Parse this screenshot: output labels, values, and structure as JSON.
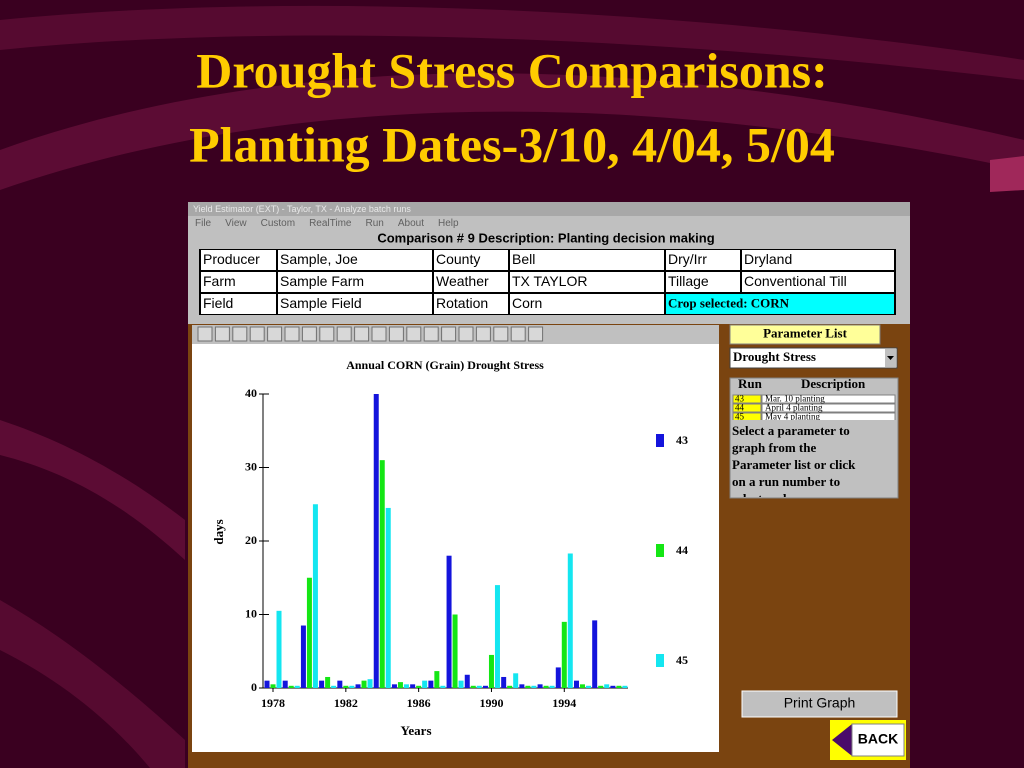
{
  "slide_title": [
    "Drought Stress Comparisons:",
    "Planting Dates-3/10, 4/04, 5/04"
  ],
  "window": {
    "title": "Yield Estimator (EXT) - Taylor, TX - Analyze batch runs",
    "menu": [
      "File",
      "View",
      "Custom",
      "RealTime",
      "Run",
      "About",
      "Help"
    ]
  },
  "comparison": "Comparison # 9 Description: Planting decision making",
  "info_table": [
    [
      "Producer",
      "Sample, Joe",
      "County",
      "Bell",
      "Dry/Irr",
      "Dryland"
    ],
    [
      "Farm",
      "Sample Farm",
      "Weather",
      "TX TAYLOR",
      "Tillage",
      "Conventional Till"
    ],
    [
      "Field",
      "Sample Field",
      "Rotation",
      "Corn",
      "Crop selected: CORN"
    ]
  ],
  "chart_data": {
    "type": "bar",
    "title": "Annual CORN (Grain) Drought Stress",
    "x_label": "Years",
    "y_label": "days",
    "x": [
      1978,
      1979,
      1980,
      1981,
      1982,
      1983,
      1984,
      1985,
      1986,
      1987,
      1988,
      1989,
      1990,
      1991,
      1992,
      1993,
      1994,
      1995,
      1996,
      1997
    ],
    "series": [
      {
        "name": "43",
        "color": "#1414dc",
        "values": [
          1,
          1,
          8.5,
          1,
          1,
          0.5,
          40,
          0.5,
          0.5,
          1,
          18,
          1.8,
          0.3,
          1.5,
          0.5,
          0.5,
          2.8,
          1,
          9.2,
          0.3
        ]
      },
      {
        "name": "44",
        "color": "#14e614",
        "values": [
          0.5,
          0.3,
          15,
          1.5,
          0.3,
          1,
          31,
          0.8,
          0.3,
          2.3,
          10,
          0.3,
          4.5,
          0.3,
          0.3,
          0.3,
          9,
          0.5,
          0.3,
          0.3
        ]
      },
      {
        "name": "45",
        "color": "#14e6f0",
        "values": [
          10.5,
          0.3,
          25,
          0.3,
          0.3,
          1.2,
          24.5,
          0.5,
          1,
          0.3,
          1,
          0.3,
          14,
          2,
          0.3,
          0.3,
          18.3,
          0.3,
          0.5,
          0.3
        ]
      }
    ],
    "xlim": [
      1977.45,
      1997.5
    ],
    "xticks": [
      1978,
      1982,
      1986,
      1990,
      1994
    ],
    "ylim": [
      0,
      40
    ],
    "yticks": [
      0,
      10,
      20,
      30,
      40
    ],
    "legend": "right"
  },
  "side_panel": {
    "parameter_list_label": "Parameter List",
    "parameter": "Drought Stress",
    "run_header": [
      "Run",
      "Description"
    ],
    "runs": [
      {
        "id": "43",
        "description": "Mar. 10 planting"
      },
      {
        "id": "44",
        "description": "April 4 planting"
      },
      {
        "id": "45",
        "description": "May 4 planting"
      }
    ],
    "help_text": [
      "Select a parameter to",
      "graph from the",
      "Parameter list or click",
      "on a run number to",
      "select and ..."
    ],
    "print_button": "Print Graph",
    "back_button": "BACK"
  }
}
